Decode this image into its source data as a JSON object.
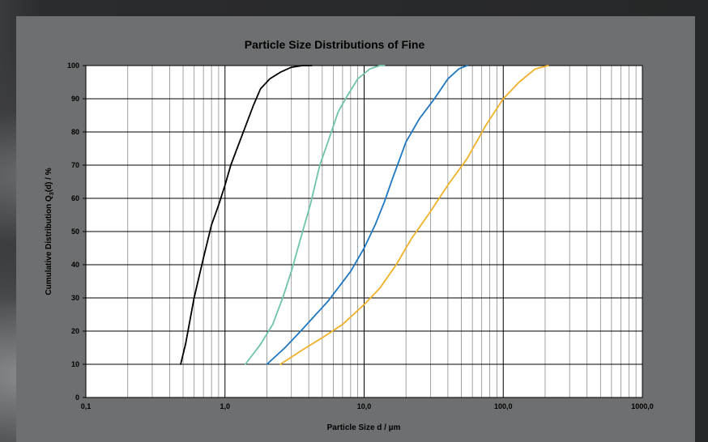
{
  "chart_data": {
    "type": "line",
    "title": "Particle Size Distributions of Fine",
    "xlabel": "Particle Size d / µm",
    "ylabel_prefix": "Cumulative Distribution Q",
    "ylabel_sub": "3",
    "ylabel_suffix": "(d) / %",
    "xscale": "log",
    "xlim": [
      0.1,
      1000
    ],
    "ylim": [
      0,
      100
    ],
    "grid": true,
    "x_ticks": [
      {
        "value": 0.1,
        "label": "0,1"
      },
      {
        "value": 1,
        "label": "1,0"
      },
      {
        "value": 10,
        "label": "10,0"
      },
      {
        "value": 100,
        "label": "100,0"
      },
      {
        "value": 1000,
        "label": "1000,0"
      }
    ],
    "y_ticks": [
      {
        "value": 0,
        "label": "0"
      },
      {
        "value": 10,
        "label": "10"
      },
      {
        "value": 20,
        "label": "20"
      },
      {
        "value": 30,
        "label": "30"
      },
      {
        "value": 40,
        "label": "40"
      },
      {
        "value": 50,
        "label": "50"
      },
      {
        "value": 60,
        "label": "60"
      },
      {
        "value": 70,
        "label": "70"
      },
      {
        "value": 80,
        "label": "80"
      },
      {
        "value": 90,
        "label": "90"
      },
      {
        "value": 100,
        "label": "100"
      }
    ],
    "series": [
      {
        "color": "#000000",
        "points": [
          [
            0.48,
            10
          ],
          [
            0.52,
            16
          ],
          [
            0.6,
            30
          ],
          [
            0.7,
            42
          ],
          [
            0.8,
            52
          ],
          [
            0.9,
            58
          ],
          [
            1.0,
            64
          ],
          [
            1.1,
            70
          ],
          [
            1.3,
            78
          ],
          [
            1.6,
            88
          ],
          [
            1.8,
            93
          ],
          [
            2.1,
            96
          ],
          [
            2.5,
            98
          ],
          [
            3.0,
            99.5
          ],
          [
            3.6,
            100
          ],
          [
            4.2,
            100
          ]
        ]
      },
      {
        "color": "#6ec4a8",
        "points": [
          [
            1.4,
            10
          ],
          [
            1.8,
            16
          ],
          [
            2.2,
            22
          ],
          [
            2.6,
            30
          ],
          [
            3.0,
            38
          ],
          [
            3.5,
            48
          ],
          [
            4.1,
            58
          ],
          [
            4.8,
            70
          ],
          [
            5.6,
            78
          ],
          [
            6.5,
            86
          ],
          [
            7.6,
            91
          ],
          [
            9.0,
            96
          ],
          [
            11,
            99
          ],
          [
            13,
            100
          ],
          [
            14,
            100
          ]
        ]
      },
      {
        "color": "#1f77c0",
        "points": [
          [
            2.0,
            10
          ],
          [
            2.7,
            15
          ],
          [
            3.5,
            20
          ],
          [
            4.5,
            25
          ],
          [
            5.5,
            29
          ],
          [
            6.5,
            33
          ],
          [
            8.0,
            38
          ],
          [
            10,
            45
          ],
          [
            12,
            52
          ],
          [
            14,
            59
          ],
          [
            16,
            66
          ],
          [
            20,
            77
          ],
          [
            25,
            84
          ],
          [
            32,
            90
          ],
          [
            40,
            96
          ],
          [
            48,
            99
          ],
          [
            55,
            100
          ]
        ]
      },
      {
        "color": "#f0b12a",
        "points": [
          [
            2.5,
            10
          ],
          [
            3.5,
            14
          ],
          [
            5,
            18
          ],
          [
            7,
            22
          ],
          [
            10,
            28
          ],
          [
            13,
            33
          ],
          [
            17,
            40
          ],
          [
            22,
            48
          ],
          [
            30,
            56
          ],
          [
            40,
            64
          ],
          [
            55,
            72
          ],
          [
            75,
            82
          ],
          [
            100,
            90
          ],
          [
            130,
            95
          ],
          [
            170,
            99
          ],
          [
            210,
            100
          ]
        ]
      }
    ]
  }
}
